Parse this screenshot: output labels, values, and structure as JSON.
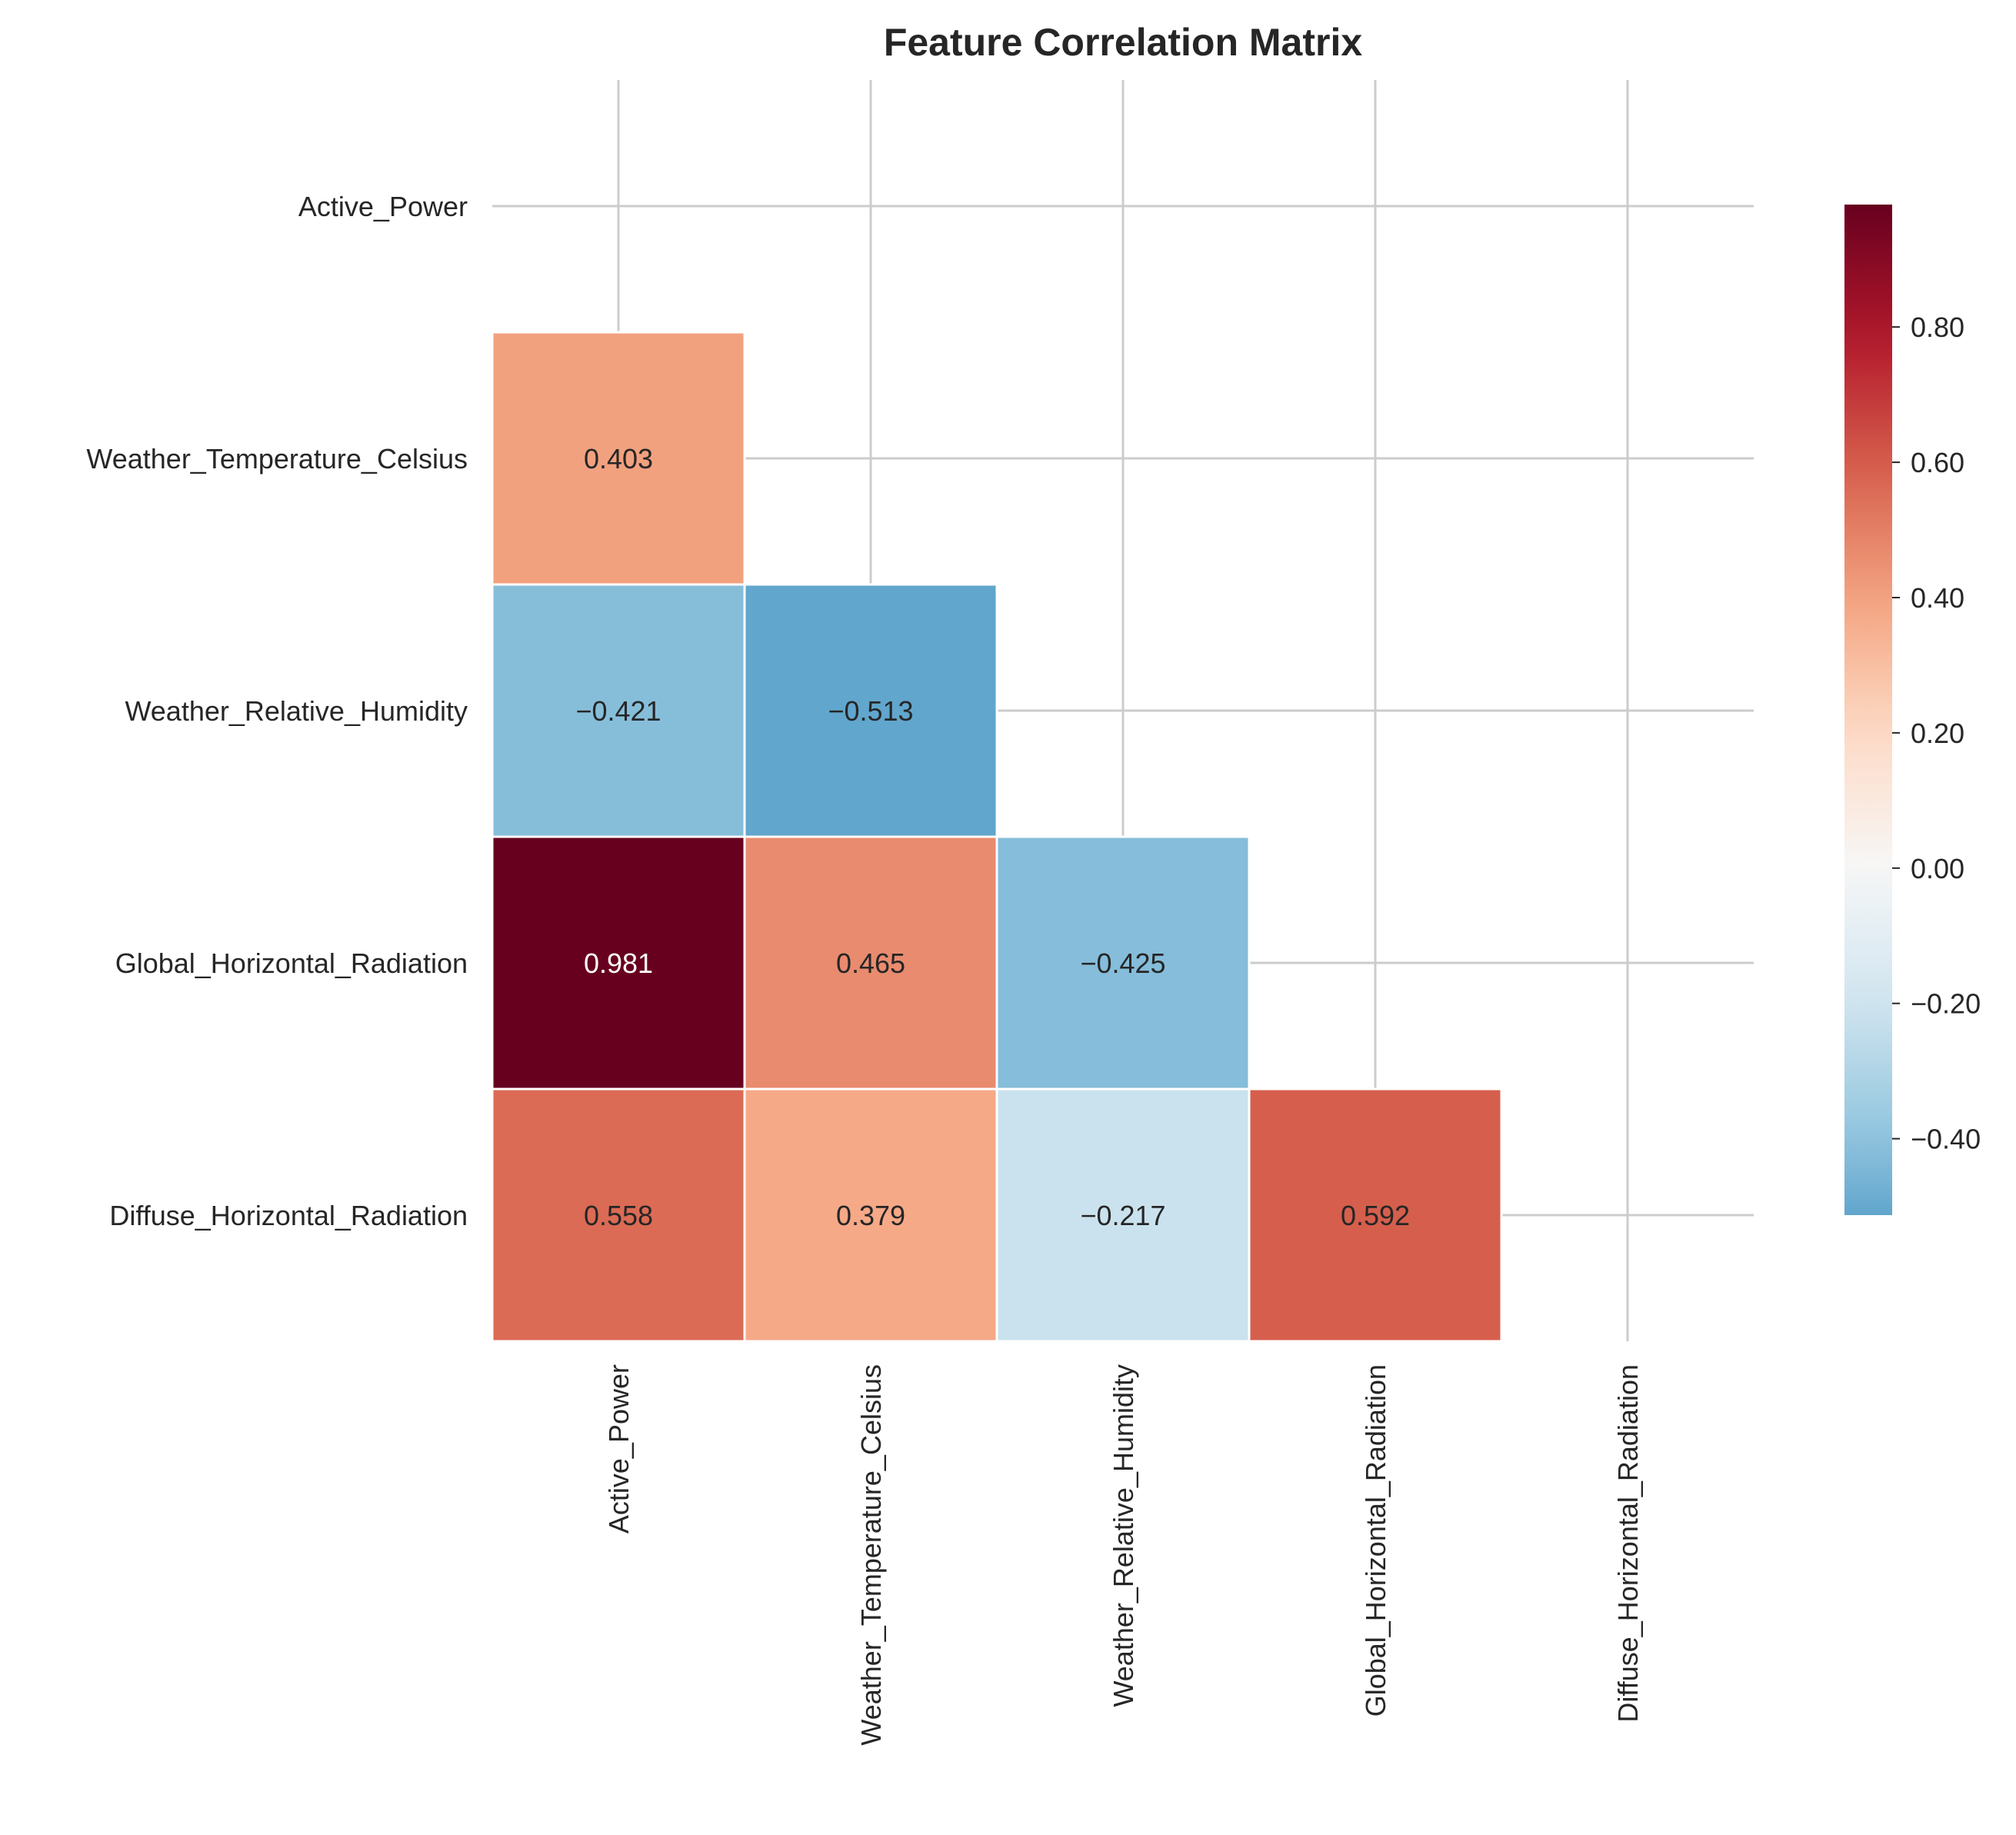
{
  "chart_data": {
    "type": "heatmap",
    "title": "Feature Correlation Matrix",
    "variables": [
      "Active_Power",
      "Weather_Temperature_Celsius",
      "Weather_Relative_Humidity",
      "Global_Horizontal_Radiation",
      "Diffuse_Horizontal_Radiation"
    ],
    "mask": "upper-triangle-including-diagonal",
    "cells": [
      {
        "row": 1,
        "col": 0,
        "value": 0.403,
        "label": "0.403"
      },
      {
        "row": 2,
        "col": 0,
        "value": -0.421,
        "label": "−0.421"
      },
      {
        "row": 2,
        "col": 1,
        "value": -0.513,
        "label": "−0.513"
      },
      {
        "row": 3,
        "col": 0,
        "value": 0.981,
        "label": "0.981"
      },
      {
        "row": 3,
        "col": 1,
        "value": 0.465,
        "label": "0.465"
      },
      {
        "row": 3,
        "col": 2,
        "value": -0.425,
        "label": "−0.425"
      },
      {
        "row": 4,
        "col": 0,
        "value": 0.558,
        "label": "0.558"
      },
      {
        "row": 4,
        "col": 1,
        "value": 0.379,
        "label": "0.379"
      },
      {
        "row": 4,
        "col": 2,
        "value": -0.217,
        "label": "−0.217"
      },
      {
        "row": 4,
        "col": 3,
        "value": 0.592,
        "label": "0.592"
      }
    ],
    "colormap": "RdBu_r",
    "colorbar": {
      "vmin": -0.513,
      "vmax": 0.981,
      "center": 0,
      "ticks": [
        0.8,
        0.6,
        0.4,
        0.2,
        0.0,
        -0.2,
        -0.4
      ],
      "tick_labels": [
        "0.80",
        "0.60",
        "0.40",
        "0.20",
        "0.00",
        "−0.20",
        "−0.40"
      ]
    },
    "grid": true
  }
}
